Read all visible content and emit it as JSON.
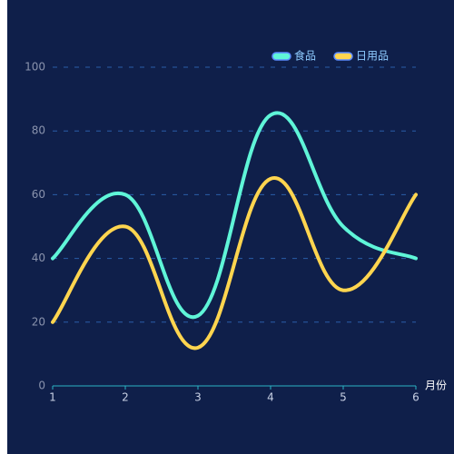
{
  "chart_data": {
    "type": "line",
    "x_label": "月份",
    "x": [
      1,
      2,
      3,
      4,
      5,
      6
    ],
    "xlim": [
      1,
      6
    ],
    "xticks": [
      1,
      2,
      3,
      4,
      5,
      6
    ],
    "ylim": [
      0,
      100
    ],
    "yticks": [
      0,
      20,
      40,
      60,
      80,
      100
    ],
    "grid": true,
    "legend": "top-right",
    "series": [
      {
        "name": "食品",
        "color": "#5ff5d8",
        "values": [
          40,
          60,
          22,
          85,
          50,
          40
        ]
      },
      {
        "name": "日用品",
        "color": "#ffd54f",
        "values": [
          20,
          50,
          12,
          65,
          30,
          60
        ]
      }
    ]
  }
}
